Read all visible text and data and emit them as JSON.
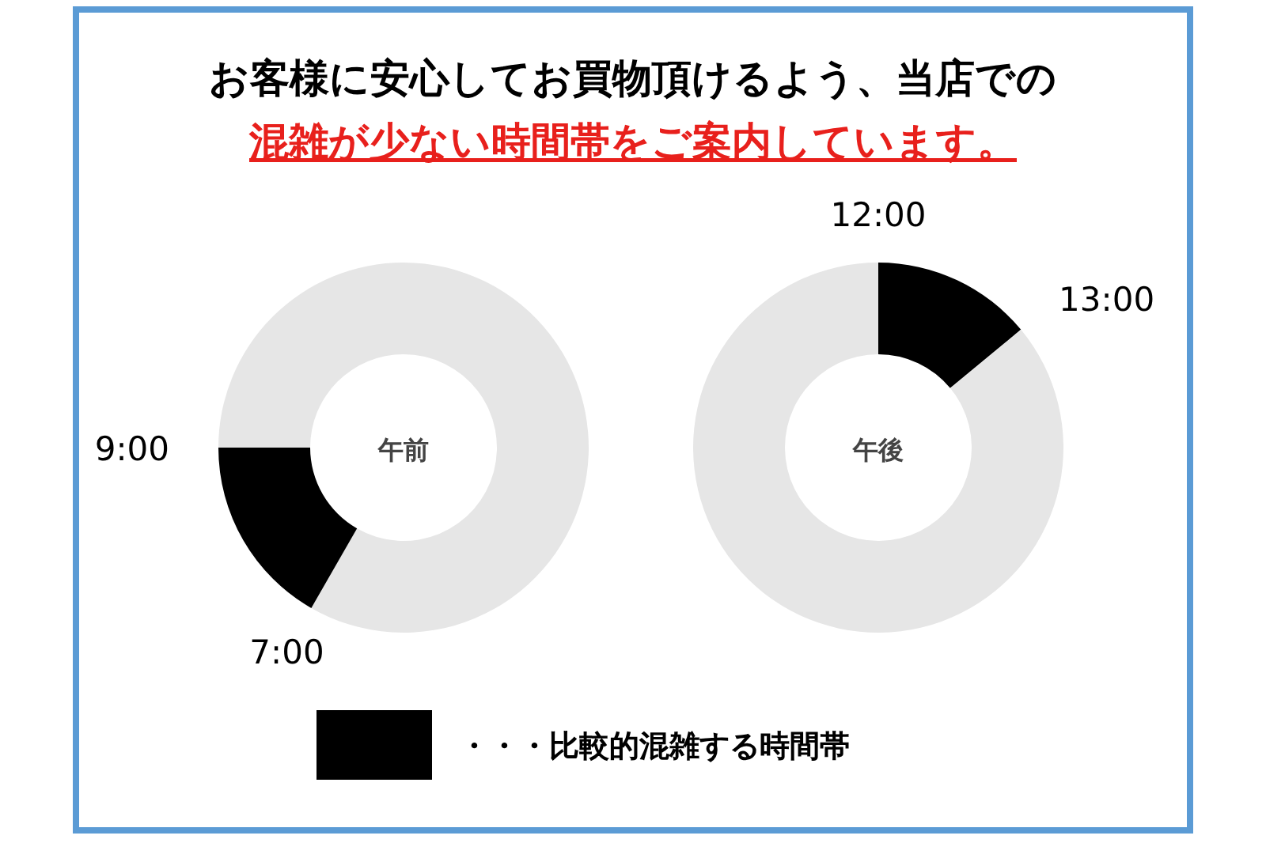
{
  "chart_data": [
    {
      "type": "donut",
      "title": "お客様に安心してお買物頂けるよう、当店での",
      "subtitle": "混雑が少ない時間帯をご案内しています。",
      "categories": [
        null,
        "・・・比較的混雑する時間帯",
        null
      ],
      "values": [
        58.3,
        16.7,
        25
      ],
      "colors": [
        "#e6e6e6",
        "#000000",
        "#e6e6e6"
      ],
      "legend": "bottom",
      "annotations": [
        "午前",
        "7:00",
        "9:00"
      ]
    },
    {
      "type": "donut",
      "categories": [
        null,
        null
      ],
      "values": [
        14,
        86
      ],
      "colors": [
        "#000000",
        "#e6e6e6"
      ],
      "annotations": [
        "午後",
        "12:00",
        "13:00"
      ]
    }
  ]
}
